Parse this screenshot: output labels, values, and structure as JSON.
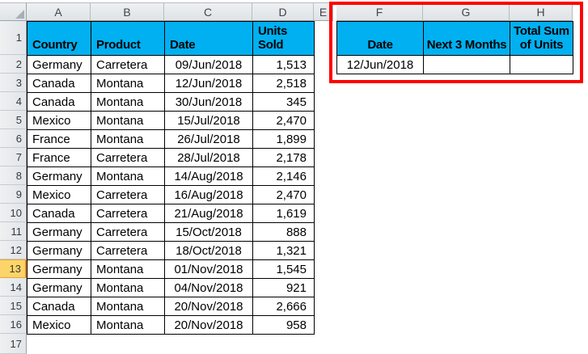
{
  "sheet": {
    "column_letters": [
      "A",
      "B",
      "C",
      "D",
      "E",
      "F",
      "G",
      "H"
    ],
    "row_numbers": [
      "1",
      "2",
      "3",
      "4",
      "5",
      "6",
      "7",
      "8",
      "9",
      "10",
      "11",
      "12",
      "13",
      "14",
      "15",
      "16",
      "17"
    ],
    "selected_row_number": "13"
  },
  "main_table": {
    "headers": [
      "Country",
      "Product",
      "Date",
      "Units Sold"
    ],
    "rows": [
      [
        "Germany",
        "Carretera",
        "09/Jun/2018",
        "1,513"
      ],
      [
        "Canada",
        "Montana",
        "12/Jun/2018",
        "2,518"
      ],
      [
        "Canada",
        "Montana",
        "30/Jun/2018",
        "345"
      ],
      [
        "Mexico",
        "Montana",
        "15/Jul/2018",
        "2,470"
      ],
      [
        "France",
        "Montana",
        "26/Jul/2018",
        "1,899"
      ],
      [
        "France",
        "Carretera",
        "28/Jul/2018",
        "2,178"
      ],
      [
        "Germany",
        "Montana",
        "14/Aug/2018",
        "2,146"
      ],
      [
        "Mexico",
        "Carretera",
        "16/Aug/2018",
        "2,470"
      ],
      [
        "Canada",
        "Carretera",
        "21/Aug/2018",
        "1,619"
      ],
      [
        "Germany",
        "Carretera",
        "15/Oct/2018",
        "888"
      ],
      [
        "Germany",
        "Carretera",
        "18/Oct/2018",
        "1,321"
      ],
      [
        "Germany",
        "Montana",
        "01/Nov/2018",
        "1,545"
      ],
      [
        "Germany",
        "Montana",
        "04/Nov/2018",
        "921"
      ],
      [
        "Canada",
        "Montana",
        "20/Nov/2018",
        "2,666"
      ],
      [
        "Mexico",
        "Montana",
        "20/Nov/2018",
        "958"
      ]
    ]
  },
  "lookup_table": {
    "headers": [
      "Date",
      "Next 3 Months",
      "Total Sum of Units"
    ],
    "row": [
      "12/Jun/2018",
      "",
      ""
    ]
  },
  "colors": {
    "header_fill": "#00B0F0",
    "highlight_border": "#FE0000",
    "selected_row_fill": "#FBD56A"
  }
}
